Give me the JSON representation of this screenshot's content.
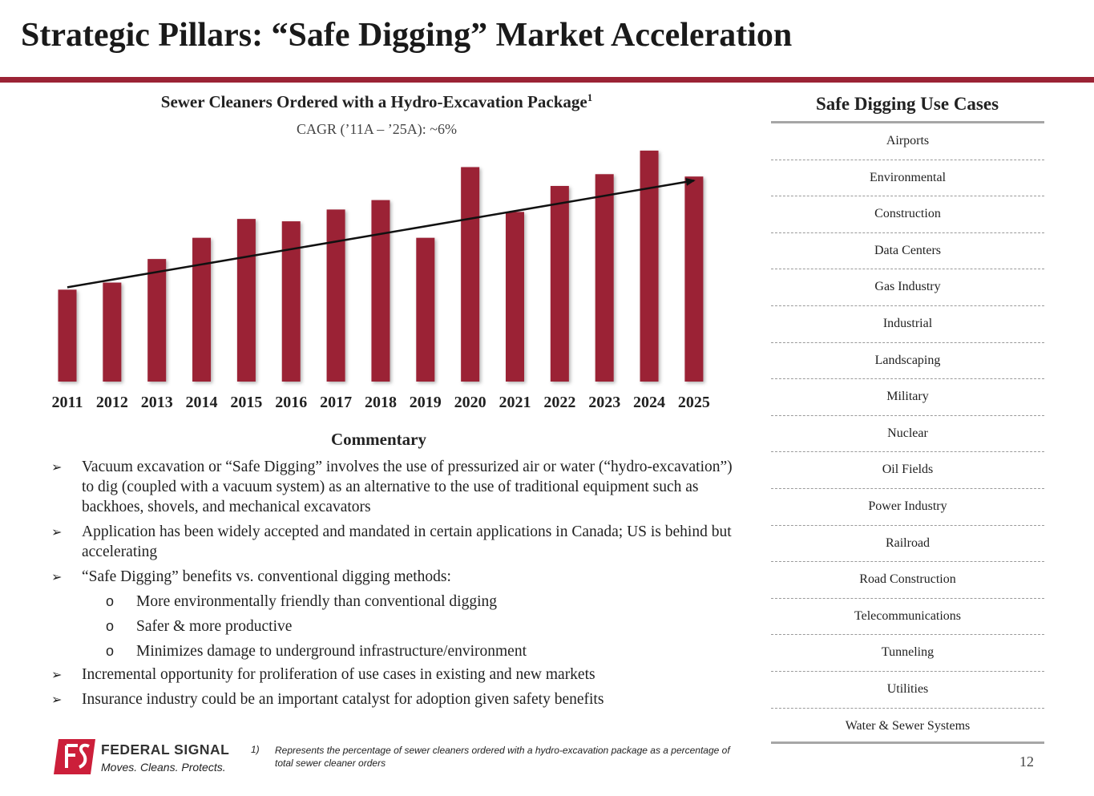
{
  "title": "Strategic Pillars: “Safe Digging” Market Acceleration",
  "chart_data": {
    "type": "bar",
    "title": "Sewer Cleaners Ordered with a Hydro-Excavation Package",
    "title_footnote": "1",
    "subtitle": "CAGR (’11A – ’25A): ~6%",
    "categories": [
      "2011",
      "2012",
      "2013",
      "2014",
      "2015",
      "2016",
      "2017",
      "2018",
      "2019",
      "2020",
      "2021",
      "2022",
      "2023",
      "2024",
      "2025"
    ],
    "values": [
      39,
      42,
      52,
      61,
      69,
      68,
      73,
      77,
      61,
      91,
      72,
      83,
      88,
      98,
      87
    ],
    "ylim": [
      0,
      100
    ],
    "xlabel": "",
    "ylabel": "",
    "bar_color": "#9b2335",
    "trendline": {
      "from": 40,
      "to": 87
    }
  },
  "commentary": {
    "title": "Commentary",
    "b1": "Vacuum excavation or “Safe Digging” involves the use of pressurized air or water (“hydro-excavation”) to dig (coupled with a vacuum system) as an alternative to the use of traditional equipment such as backhoes, shovels, and mechanical excavators",
    "b2": "Application has been widely accepted and mandated in certain applications in Canada; US is behind but accelerating",
    "b3": "“Safe Digging” benefits vs. conventional digging methods:",
    "s1": "More environmentally friendly than conventional digging",
    "s2": "Safer & more productive",
    "s3": "Minimizes damage to underground infrastructure/environment",
    "b4": "Incremental opportunity for proliferation of use cases in existing and new markets",
    "b5": "Insurance industry could be an important catalyst for adoption given safety benefits"
  },
  "use_cases": {
    "title": "Safe Digging Use Cases",
    "items": [
      "Airports",
      "Environmental",
      "Construction",
      "Data Centers",
      "Gas Industry",
      "Industrial",
      "Landscaping",
      "Military",
      "Nuclear",
      "Oil Fields",
      "Power Industry",
      "Railroad",
      "Road Construction",
      "Telecommunications",
      "Tunneling",
      "Utilities",
      "Water & Sewer Systems"
    ]
  },
  "logo": {
    "name": "FEDERAL SIGNAL",
    "tagline": "Moves. Cleans. Protects.",
    "color": "#cc1f3a"
  },
  "footnote": {
    "number": "1)",
    "text": "Represents the percentage of sewer cleaners ordered with a hydro-excavation package as a percentage of total sewer cleaner orders"
  },
  "page_number": "12"
}
